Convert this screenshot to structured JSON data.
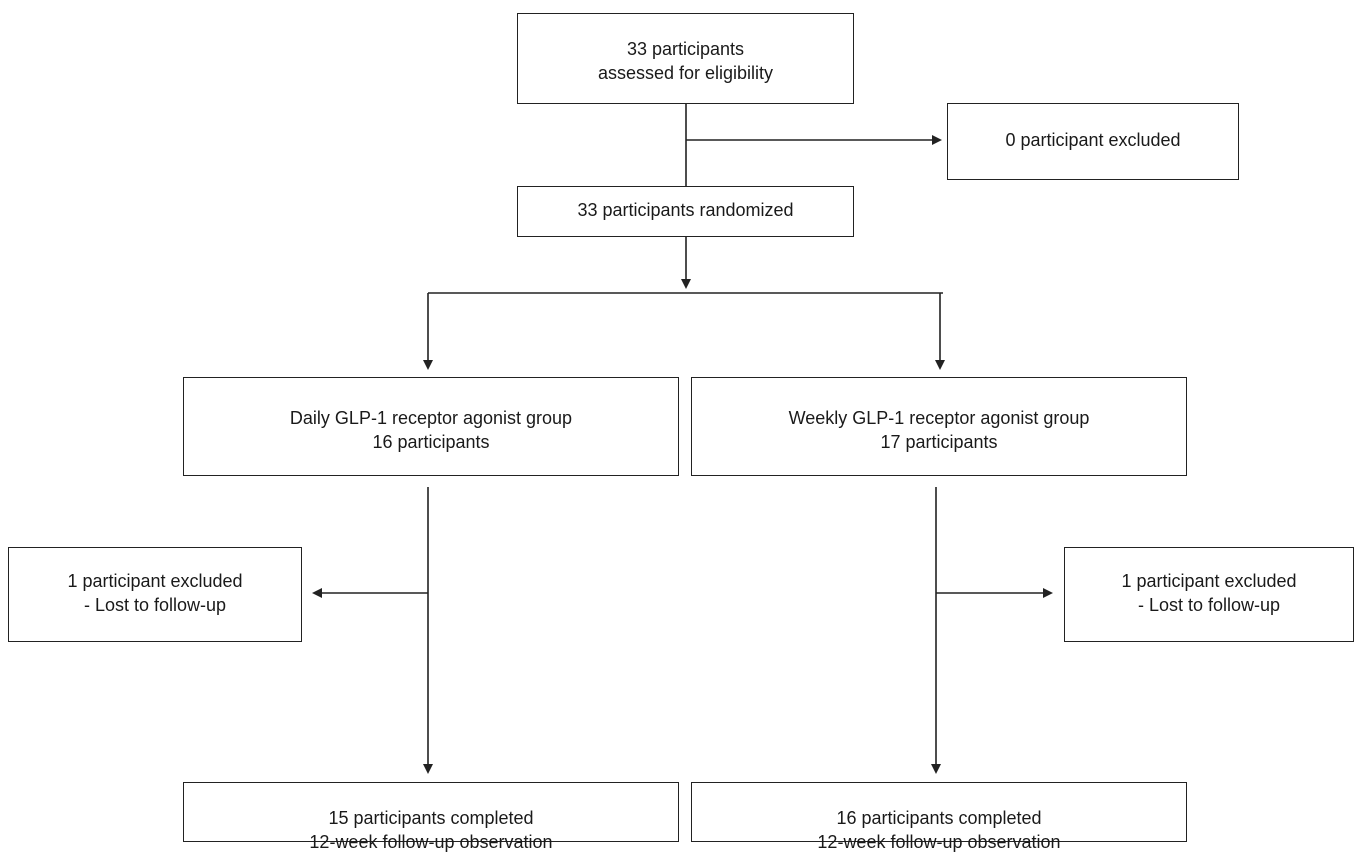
{
  "boxes": {
    "assessed": {
      "line1": "33 participants",
      "line2": "assessed for eligibility"
    },
    "excluded_initial": {
      "line1": "0 participant excluded"
    },
    "randomized": {
      "line1": "33 participants randomized"
    },
    "daily_group": {
      "line1": "Daily GLP-1 receptor agonist group",
      "line2": "16 participants"
    },
    "weekly_group": {
      "line1": "Weekly GLP-1 receptor agonist group",
      "line2": "17 participants"
    },
    "daily_excluded": {
      "line1": "1 participant excluded",
      "line2": "- Lost to follow-up"
    },
    "weekly_excluded": {
      "line1": "1 participant excluded",
      "line2": "- Lost to follow-up"
    },
    "daily_completed": {
      "line1": "15 participants completed",
      "line2": "12-week follow-up observation"
    },
    "weekly_completed": {
      "line1": "16 participants completed",
      "line2": "12-week follow-up observation"
    }
  },
  "colors": {
    "line": "#222222",
    "text": "#1a1a1a",
    "background": "#ffffff"
  }
}
